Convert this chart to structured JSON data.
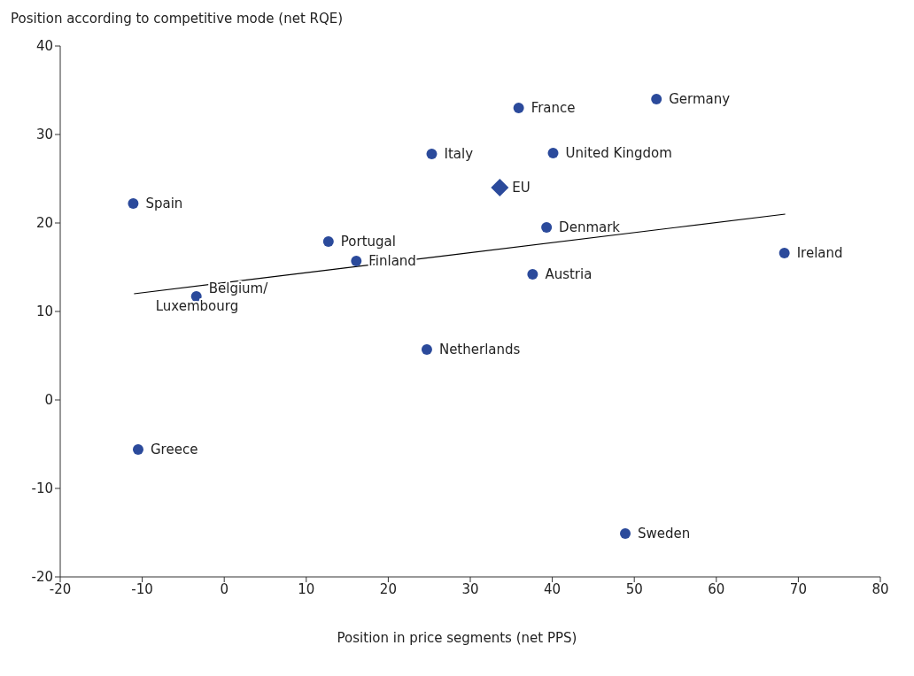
{
  "chart_data": {
    "type": "scatter",
    "ylabel": "Position according to competitive mode (net RQE)",
    "xlabel": "Position in price segments (net PPS)",
    "xlim": [
      -20,
      80
    ],
    "xticks": [
      -20,
      -10,
      0,
      10,
      20,
      30,
      40,
      50,
      60,
      70,
      80
    ],
    "ylim": [
      -20,
      40
    ],
    "yticks": [
      -20,
      -10,
      0,
      10,
      20,
      30,
      40
    ],
    "grid": false,
    "series": [
      {
        "marker": "circle",
        "color": "#2b4a9b",
        "x": [
          52.7,
          35.9,
          25.3,
          40.1,
          -11.1,
          12.7,
          39.3,
          16.1,
          68.3,
          37.6,
          -3.4,
          24.7,
          -10.5,
          48.9
        ],
        "values": [
          34.0,
          33.0,
          27.8,
          27.9,
          22.2,
          17.9,
          19.5,
          15.7,
          16.6,
          14.2,
          11.7,
          5.7,
          -5.6,
          -15.1
        ]
      },
      {
        "type": "scatter",
        "marker": "diamond",
        "color": "#2b4a9b",
        "x": [
          33.6
        ],
        "values": [
          24.0
        ]
      },
      {
        "type": "line",
        "color": "#000000",
        "x": [
          -11,
          68.4
        ],
        "values": [
          12.0,
          21.0
        ]
      }
    ],
    "annotations": [
      {
        "text": "Germany",
        "x": 52.7,
        "y": 34.0
      },
      {
        "text": "France",
        "x": 35.9,
        "y": 33.0
      },
      {
        "text": "Italy",
        "x": 25.3,
        "y": 27.8
      },
      {
        "text": "United Kingdom",
        "x": 40.1,
        "y": 27.9
      },
      {
        "text": "Spain",
        "x": -11.1,
        "y": 22.2
      },
      {
        "text": "Portugal",
        "x": 12.7,
        "y": 17.9
      },
      {
        "text": "Denmark",
        "x": 39.3,
        "y": 19.5
      },
      {
        "text": "Finland",
        "x": 16.1,
        "y": 15.7
      },
      {
        "text": "Ireland",
        "x": 68.3,
        "y": 16.6
      },
      {
        "text": "Austria",
        "x": 37.6,
        "y": 14.2
      },
      {
        "text": "Belgium/Luxembourg",
        "x": -3.4,
        "y": 11.7
      },
      {
        "text": "Netherlands",
        "x": 24.7,
        "y": 5.7
      },
      {
        "text": "Greece",
        "x": -10.5,
        "y": -5.6
      },
      {
        "text": "Sweden",
        "x": 48.9,
        "y": -15.1
      },
      {
        "text": "EU",
        "x": 33.6,
        "y": 24.0
      }
    ]
  }
}
